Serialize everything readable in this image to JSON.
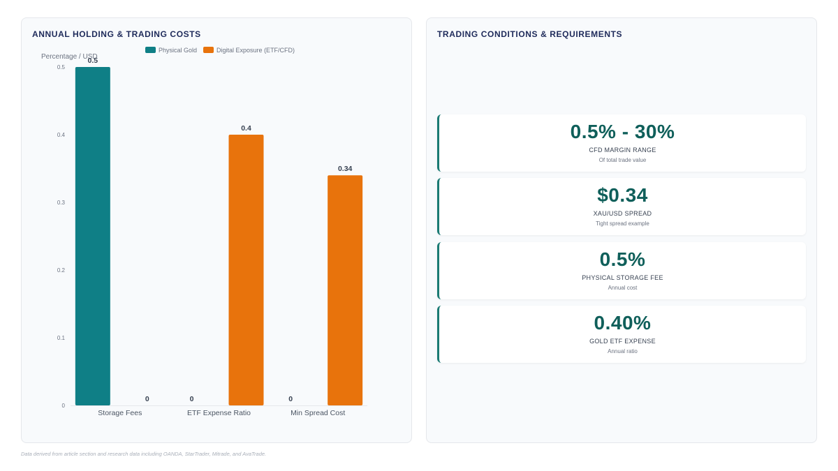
{
  "chart_panel": {
    "title": "ANNUAL HOLDING & TRADING COSTS"
  },
  "chart_data": {
    "type": "bar",
    "title": "ANNUAL HOLDING & TRADING COSTS",
    "ylabel": "Percentage / USD",
    "categories": [
      "Storage Fees",
      "ETF Expense Ratio",
      "Min Spread Cost"
    ],
    "series": [
      {
        "name": "Physical Gold",
        "color": "#0f7f86",
        "values": [
          0.5,
          0,
          0
        ]
      },
      {
        "name": "Digital Exposure (ETF/CFD)",
        "color": "#e8730c",
        "values": [
          0,
          0.4,
          0.34
        ]
      }
    ],
    "ylim": [
      0,
      0.5
    ],
    "yticks": [
      "0",
      "0.1",
      "0.2",
      "0.3",
      "0.4",
      "0.5"
    ],
    "legend_position": "top",
    "grid": false
  },
  "conditions_panel": {
    "title": "TRADING CONDITIONS & REQUIREMENTS",
    "cards": [
      {
        "value": "0.5% - 30%",
        "label": "CFD MARGIN RANGE",
        "sub": "Of total trade value"
      },
      {
        "value": "$0.34",
        "label": "XAU/USD SPREAD",
        "sub": "Tight spread example"
      },
      {
        "value": "0.5%",
        "label": "PHYSICAL STORAGE FEE",
        "sub": "Annual cost"
      },
      {
        "value": "0.40%",
        "label": "GOLD ETF EXPENSE",
        "sub": "Annual ratio"
      }
    ]
  },
  "footnote": "Data derived from article section and research data including OANDA, StarTrader, Mitrade, and AvaTrade."
}
